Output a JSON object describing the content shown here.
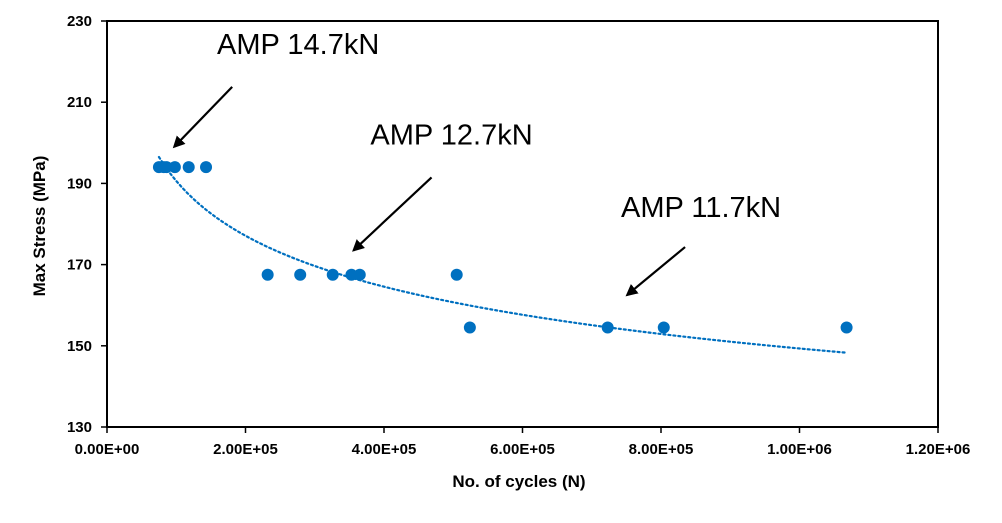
{
  "chart_data": {
    "type": "scatter",
    "title": "",
    "xlabel": "No. of cycles (N)",
    "ylabel": "Max Stress (MPa)",
    "xlim": [
      0,
      1200000
    ],
    "ylim": [
      130,
      230
    ],
    "x_ticks": [
      0,
      200000,
      400000,
      600000,
      800000,
      1000000,
      1200000
    ],
    "x_tick_labels": [
      "0.00E+00",
      "2.00E+05",
      "4.00E+05",
      "6.00E+05",
      "8.00E+05",
      "1.00E+06",
      "1.20E+06"
    ],
    "y_ticks": [
      130,
      150,
      170,
      190,
      210,
      230
    ],
    "y_tick_labels": [
      "130",
      "150",
      "170",
      "190",
      "210",
      "230"
    ],
    "grid": false,
    "legend": "none",
    "colors": {
      "points": "#0070c0",
      "trendline": "#0070c0",
      "frame": "#000000"
    },
    "series": [
      {
        "x": [
          75000,
          82000,
          86000,
          98000,
          118000,
          143000,
          232000,
          279000,
          326000,
          353000,
          365000,
          505000,
          524000,
          723000,
          804000,
          1068000
        ],
        "y": [
          194,
          194,
          194,
          194,
          194,
          194,
          167.5,
          167.5,
          167.5,
          167.5,
          167.5,
          167.5,
          154.5,
          154.5,
          154.5,
          154.5
        ]
      }
    ],
    "trendline": {
      "type": "power",
      "style": "dotted",
      "x_range": [
        75000,
        1068000
      ],
      "y_start": 196.5,
      "y_end": 148.3
    },
    "annotations": [
      {
        "text": "AMP 14.7kN",
        "arrow_to": [
          97000,
          199
        ]
      },
      {
        "text": "AMP 12.7kN",
        "arrow_to": [
          356000,
          173.5
        ]
      },
      {
        "text": "AMP 11.7kN",
        "arrow_to": [
          751000,
          162.5
        ]
      }
    ]
  }
}
